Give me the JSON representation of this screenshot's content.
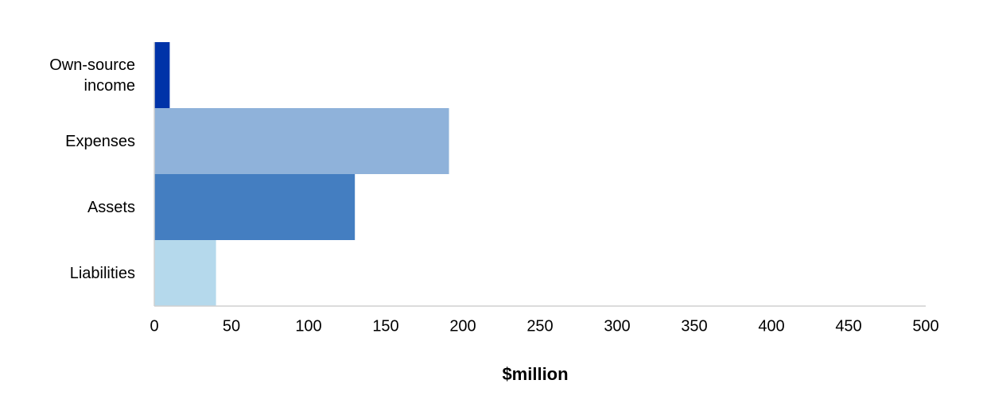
{
  "chart_data": {
    "type": "hbar",
    "categories": [
      "Own-source income",
      "Expenses",
      "Assets",
      "Liabilities"
    ],
    "values": [
      10,
      191,
      130,
      40
    ],
    "colors": [
      "#0033a8",
      "#8fb2da",
      "#447ec1",
      "#b5d9ec"
    ],
    "x_label": "$million",
    "xlim": [
      0,
      500
    ],
    "xticks": [
      0,
      50,
      100,
      150,
      200,
      250,
      300,
      350,
      400,
      450,
      500
    ],
    "grid": false
  }
}
